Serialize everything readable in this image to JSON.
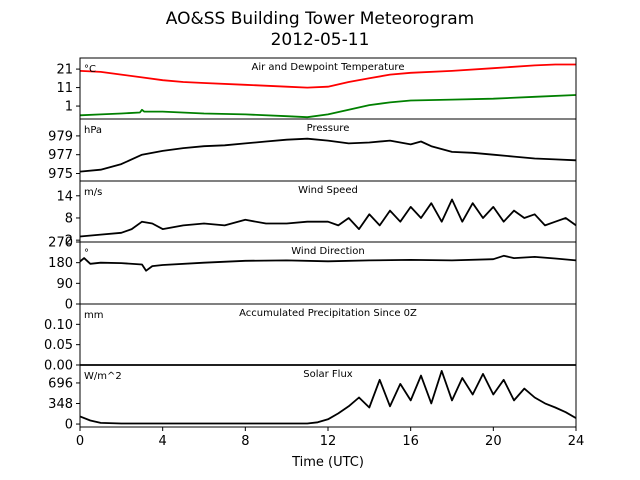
{
  "title": "AO&SS Building Tower Meteorogram",
  "subtitle": "2012-05-11",
  "xlabel": "Time (UTC)",
  "colors": {
    "temperature": "#ff0000",
    "dewpoint": "#008000",
    "line": "#000000"
  },
  "chart_data": [
    {
      "type": "line",
      "title": "Air and Dewpoint Temperature",
      "ylabel": "°C",
      "ylim": [
        -6,
        27
      ],
      "yticks": [
        1,
        11,
        21
      ],
      "xlim": [
        0,
        24
      ],
      "xticks": [
        0,
        4,
        8,
        12,
        16,
        20,
        24
      ],
      "series": [
        {
          "color": "#ff0000",
          "x": [
            0,
            1,
            2,
            3,
            4,
            5,
            6,
            8,
            10,
            11,
            12,
            13,
            14,
            15,
            16,
            18,
            20,
            22,
            23,
            24
          ],
          "y": [
            20,
            19.5,
            18,
            16.5,
            15,
            14,
            13.5,
            12.5,
            11.5,
            11,
            11.5,
            14,
            16,
            18,
            19,
            20,
            21.5,
            23,
            23.5,
            23.5
          ]
        },
        {
          "color": "#008000",
          "x": [
            0,
            1,
            2,
            2.9,
            3,
            3.1,
            3.2,
            4,
            6,
            8,
            10,
            11,
            12,
            13,
            14,
            15,
            16,
            18,
            20,
            22,
            24
          ],
          "y": [
            -4,
            -3.5,
            -3,
            -2.5,
            -1,
            -2,
            -2,
            -2,
            -3,
            -3.5,
            -4.5,
            -5,
            -3.5,
            -1,
            1.5,
            3,
            4,
            4.5,
            5,
            6,
            7
          ]
        }
      ]
    },
    {
      "type": "line",
      "title": "Pressure",
      "ylabel": "hPa",
      "ylim": [
        974.2,
        980.8
      ],
      "yticks": [
        975,
        977,
        979
      ],
      "xlim": [
        0,
        24
      ],
      "series": [
        {
          "color": "#000000",
          "x": [
            0,
            1,
            2,
            3,
            4,
            5,
            6,
            7,
            8,
            9,
            10,
            11,
            12,
            13,
            14,
            15,
            16,
            16.5,
            17,
            18,
            19,
            20,
            21,
            22,
            23,
            24
          ],
          "y": [
            975.2,
            975.4,
            976,
            977,
            977.4,
            977.7,
            977.9,
            978,
            978.2,
            978.4,
            978.6,
            978.7,
            978.5,
            978.2,
            978.3,
            978.5,
            978.1,
            978.4,
            977.9,
            977.3,
            977.2,
            977,
            976.8,
            976.6,
            976.5,
            976.4
          ]
        }
      ]
    },
    {
      "type": "line",
      "title": "Wind Speed",
      "ylabel": "m/s",
      "ylim": [
        1.5,
        18
      ],
      "yticks": [
        2,
        8,
        14
      ],
      "xlim": [
        0,
        24
      ],
      "series": [
        {
          "color": "#000000",
          "x": [
            0,
            1,
            2,
            2.5,
            3,
            3.5,
            4,
            5,
            6,
            7,
            8,
            9,
            10,
            11,
            12,
            12.5,
            13,
            13.5,
            14,
            14.5,
            15,
            15.5,
            16,
            16.5,
            17,
            17.5,
            18,
            18.5,
            19,
            19.5,
            20,
            20.5,
            21,
            21.5,
            22,
            22.5,
            23,
            23.5,
            24
          ],
          "y": [
            3,
            3.5,
            4,
            5,
            7,
            6.5,
            5,
            6,
            6.5,
            6,
            7.5,
            6.5,
            6.5,
            7,
            7,
            6,
            8,
            5,
            9,
            6,
            10,
            7,
            11,
            8,
            12,
            7,
            13,
            7,
            12,
            8,
            11,
            7,
            10,
            8,
            9,
            6,
            7,
            8,
            6
          ]
        }
      ]
    },
    {
      "type": "line",
      "title": "Wind Direction",
      "ylabel": "°",
      "ylim": [
        0,
        270
      ],
      "yticks": [
        0,
        90,
        180,
        270
      ],
      "xlim": [
        0,
        24
      ],
      "series": [
        {
          "color": "#000000",
          "x": [
            0,
            0.2,
            0.5,
            1,
            2,
            3,
            3.2,
            3.5,
            4,
            6,
            8,
            10,
            12,
            14,
            16,
            18,
            20,
            20.5,
            21,
            22,
            23,
            24
          ],
          "y": [
            185,
            200,
            175,
            180,
            178,
            172,
            145,
            165,
            170,
            180,
            188,
            190,
            186,
            190,
            192,
            190,
            195,
            210,
            200,
            205,
            198,
            190
          ]
        }
      ]
    },
    {
      "type": "line",
      "title": "Accumulated Precipitation Since 0Z",
      "ylabel": "mm",
      "ylim": [
        0,
        0.15
      ],
      "yticks": [
        0,
        0.05,
        0.1
      ],
      "ytick_labels": [
        "0.00",
        "0.05",
        "0.10"
      ],
      "xlim": [
        0,
        24
      ],
      "series": [
        {
          "color": "#000000",
          "x": [
            0,
            24
          ],
          "y": [
            0,
            0
          ]
        }
      ]
    },
    {
      "type": "line",
      "title": "Solar Flux",
      "ylabel": "W/m^2",
      "ylim": [
        -50,
        1000
      ],
      "yticks": [
        0,
        348,
        696
      ],
      "xlim": [
        0,
        24
      ],
      "series": [
        {
          "color": "#000000",
          "x": [
            0,
            0.5,
            1,
            2,
            4,
            8,
            11,
            11.5,
            12,
            12.5,
            13,
            13.5,
            14,
            14.5,
            15,
            15.5,
            16,
            16.5,
            17,
            17.5,
            18,
            18.5,
            19,
            19.5,
            20,
            20.5,
            21,
            21.5,
            22,
            22.5,
            23,
            23.5,
            24
          ],
          "y": [
            130,
            60,
            20,
            10,
            10,
            10,
            10,
            30,
            80,
            180,
            300,
            450,
            280,
            750,
            300,
            680,
            400,
            820,
            350,
            900,
            400,
            780,
            500,
            850,
            500,
            750,
            400,
            600,
            450,
            350,
            280,
            200,
            100
          ]
        }
      ]
    }
  ]
}
